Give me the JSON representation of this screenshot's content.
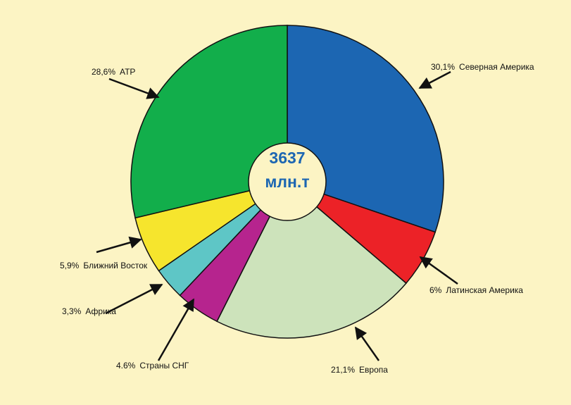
{
  "chart_data": {
    "type": "donut",
    "categories": [
      "Северная Америка",
      "Латинская Америка",
      "Европа",
      "Страны СНГ",
      "Африка",
      "Ближний Восток",
      "АТР"
    ],
    "values": [
      30.1,
      6,
      21.1,
      4.6,
      3.3,
      5.9,
      28.6
    ],
    "value_labels": [
      "30,1%",
      "6%",
      "21,1%",
      "4.6%",
      "3,3%",
      "5,9%",
      "28,6%"
    ],
    "colors": [
      "#1c66b2",
      "#ec2227",
      "#cde3bb",
      "#b6248e",
      "#5ec6c6",
      "#f6e52d",
      "#12ae4b"
    ],
    "center_value": 3637,
    "center_unit": "млн.т"
  }
}
